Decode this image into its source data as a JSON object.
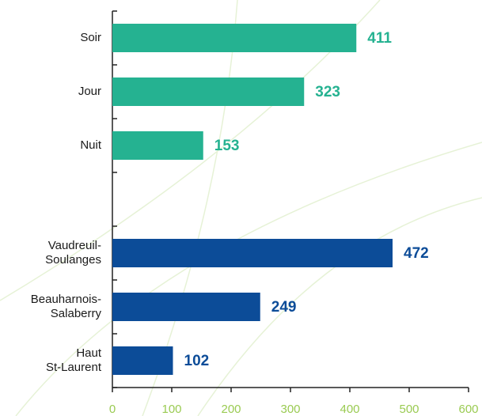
{
  "chart_data": {
    "type": "barh",
    "categories": [
      "Soir",
      "Jour",
      "Nuit",
      null,
      "Vaudreuil-\nSoulanges",
      "Beauharnois-\nSalaberry",
      "Haut\nSt-Laurent"
    ],
    "values": [
      411,
      323,
      153,
      null,
      472,
      249,
      102
    ],
    "colors": [
      "#25b291",
      "#25b291",
      "#25b291",
      null,
      "#0c4c98",
      "#0c4c98",
      "#0c4c98"
    ],
    "xlim": [
      0,
      600
    ],
    "xticks": [
      0,
      100,
      200,
      300,
      400,
      500,
      600
    ]
  }
}
